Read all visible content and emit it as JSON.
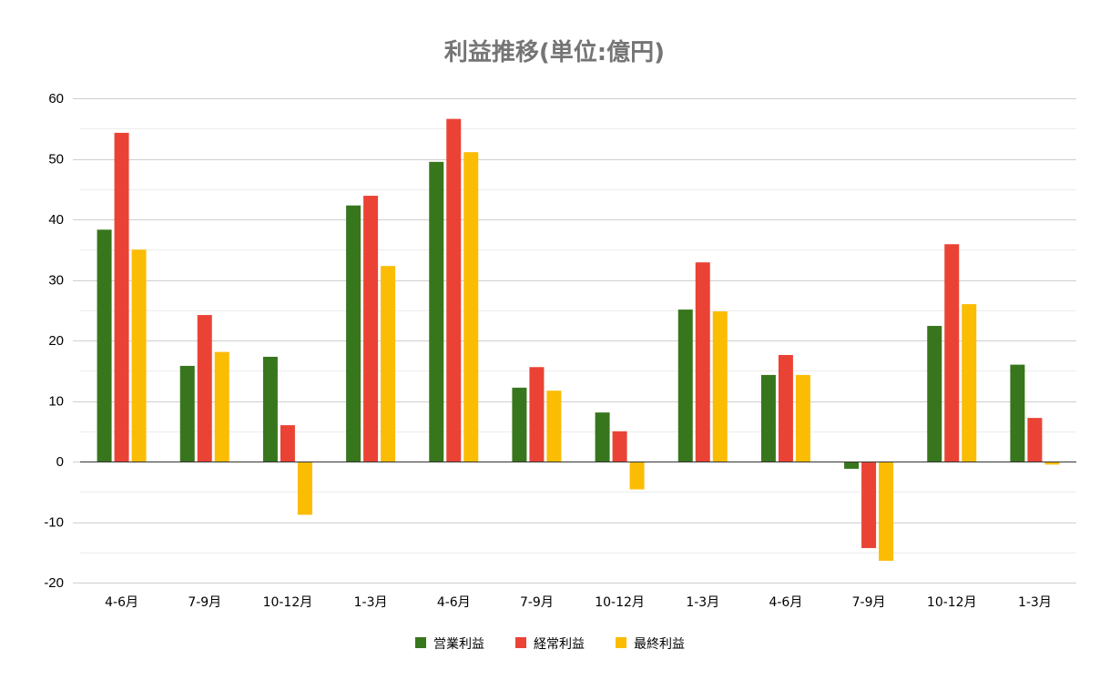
{
  "chart_data": {
    "type": "bar",
    "title": "利益推移(単位:億円)",
    "xlabel": "",
    "ylabel": "",
    "ylim": [
      -20,
      60
    ],
    "yticks": [
      -20,
      -10,
      0,
      10,
      20,
      30,
      40,
      50,
      60
    ],
    "grid": true,
    "legend_position": "bottom",
    "categories": [
      "4-6月",
      "7-9月",
      "10-12月",
      "1-3月",
      "4-6月",
      "7-9月",
      "10-12月",
      "1-3月",
      "4-6月",
      "7-9月",
      "10-12月",
      "1-3月"
    ],
    "series": [
      {
        "name": "営業利益",
        "color": "#38761d",
        "values": [
          38.3,
          15.8,
          17.3,
          42.3,
          49.5,
          12.2,
          8.1,
          25.1,
          14.3,
          -1.2,
          22.4,
          16.0
        ]
      },
      {
        "name": "経常利益",
        "color": "#ea4335",
        "values": [
          54.3,
          24.2,
          6.0,
          43.9,
          56.6,
          15.6,
          5.0,
          32.9,
          17.6,
          -14.3,
          35.9,
          7.2
        ]
      },
      {
        "name": "最終利益",
        "color": "#fbbc04",
        "values": [
          35.0,
          18.1,
          -8.8,
          32.3,
          51.1,
          11.7,
          -4.6,
          24.8,
          14.3,
          -16.4,
          26.0,
          -0.5
        ]
      }
    ]
  }
}
